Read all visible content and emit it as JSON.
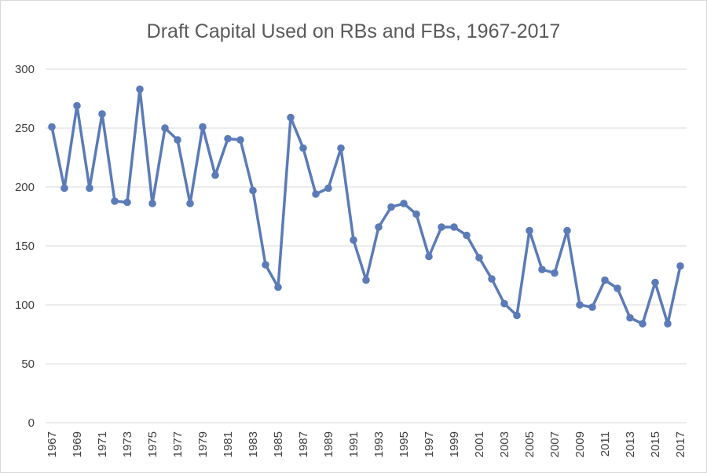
{
  "chart_data": {
    "type": "line",
    "title": "Draft Capital Used on RBs and FBs, 1967-2017",
    "xlabel": "",
    "ylabel": "",
    "ylim": [
      0,
      300
    ],
    "yticks": [
      0,
      50,
      100,
      150,
      200,
      250,
      300
    ],
    "grid": true,
    "legend": "none",
    "line_color": "#5b7bb8",
    "grid_color": "#d9d9d9",
    "x": [
      1967,
      1968,
      1969,
      1970,
      1971,
      1972,
      1973,
      1974,
      1975,
      1976,
      1977,
      1978,
      1979,
      1980,
      1981,
      1982,
      1983,
      1984,
      1985,
      1986,
      1987,
      1988,
      1989,
      1990,
      1991,
      1992,
      1993,
      1994,
      1995,
      1996,
      1997,
      1998,
      1999,
      2000,
      2001,
      2002,
      2003,
      2004,
      2005,
      2006,
      2007,
      2008,
      2009,
      2010,
      2011,
      2012,
      2013,
      2014,
      2015,
      2016,
      2017
    ],
    "xtick_labels": [
      "1967",
      "1969",
      "1971",
      "1973",
      "1975",
      "1977",
      "1979",
      "1981",
      "1983",
      "1985",
      "1987",
      "1989",
      "1991",
      "1993",
      "1995",
      "1997",
      "1999",
      "2001",
      "2003",
      "2005",
      "2007",
      "2009",
      "2011",
      "2013",
      "2015",
      "2017"
    ],
    "series": [
      {
        "values": [
          251,
          199,
          269,
          199,
          262,
          188,
          187,
          283,
          186,
          250,
          240,
          186,
          251,
          210,
          241,
          240,
          197,
          134,
          115,
          259,
          233,
          194,
          199,
          233,
          155,
          121,
          166,
          183,
          186,
          177,
          141,
          166,
          166,
          159,
          140,
          122,
          101,
          91,
          163,
          130,
          127,
          163,
          100,
          98,
          121,
          114,
          89,
          84,
          119,
          84,
          133
        ]
      }
    ]
  }
}
